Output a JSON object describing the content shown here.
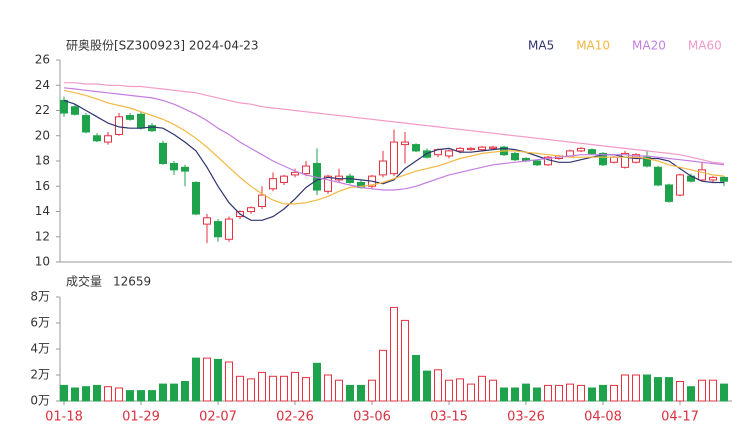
{
  "chart_data": {
    "type": "candlestick",
    "title": "研奥股份[SZ300923] 2024-04-23",
    "categories": [
      "01-18",
      null,
      null,
      null,
      null,
      null,
      null,
      "01-29",
      null,
      null,
      null,
      null,
      null,
      null,
      "02-07",
      null,
      null,
      null,
      null,
      null,
      null,
      "02-26",
      null,
      null,
      null,
      null,
      null,
      null,
      "03-06",
      null,
      null,
      null,
      null,
      null,
      null,
      "03-15",
      null,
      null,
      null,
      null,
      null,
      null,
      "03-26",
      null,
      null,
      null,
      null,
      null,
      null,
      "04-08",
      null,
      null,
      null,
      null,
      null,
      null,
      "04-17",
      null,
      null,
      null,
      null
    ],
    "up_color": "#e8303f",
    "down_color": "#1ea34c",
    "candles": [
      [
        22.8,
        23.1,
        21.5,
        21.8
      ],
      [
        22.3,
        22.5,
        21.6,
        21.7
      ],
      [
        21.6,
        21.8,
        20.2,
        20.3
      ],
      [
        20.0,
        20.2,
        19.5,
        19.6
      ],
      [
        19.5,
        20.3,
        19.3,
        20.0
      ],
      [
        20.1,
        21.8,
        20.0,
        21.5
      ],
      [
        21.6,
        21.8,
        21.2,
        21.3
      ],
      [
        21.7,
        21.9,
        20.5,
        20.6
      ],
      [
        20.8,
        21.0,
        20.3,
        20.4
      ],
      [
        19.4,
        19.6,
        17.7,
        17.8
      ],
      [
        17.8,
        18.0,
        16.9,
        17.3
      ],
      [
        17.5,
        17.7,
        16.0,
        17.2
      ],
      [
        16.3,
        16.4,
        13.7,
        13.8
      ],
      [
        13.0,
        13.8,
        11.5,
        13.5
      ],
      [
        13.2,
        13.4,
        11.6,
        12.0
      ],
      [
        11.8,
        13.6,
        11.6,
        13.4
      ],
      [
        13.6,
        14.1,
        13.4,
        14.0
      ],
      [
        14.0,
        14.4,
        13.8,
        14.3
      ],
      [
        14.4,
        16.0,
        14.2,
        15.3
      ],
      [
        15.8,
        17.1,
        15.6,
        16.6
      ],
      [
        16.3,
        16.9,
        16.1,
        16.8
      ],
      [
        16.9,
        17.4,
        16.7,
        17.1
      ],
      [
        17.0,
        18.0,
        16.8,
        17.6
      ],
      [
        17.8,
        19.0,
        15.3,
        15.7
      ],
      [
        15.6,
        16.9,
        15.4,
        16.8
      ],
      [
        16.5,
        17.4,
        16.3,
        16.8
      ],
      [
        16.8,
        17.0,
        16.2,
        16.3
      ],
      [
        16.3,
        16.5,
        15.8,
        15.9
      ],
      [
        16.0,
        16.9,
        15.8,
        16.8
      ],
      [
        16.9,
        18.8,
        16.7,
        18.0
      ],
      [
        17.0,
        20.5,
        16.8,
        19.5
      ],
      [
        19.3,
        20.3,
        17.8,
        19.5
      ],
      [
        19.3,
        19.4,
        18.7,
        18.8
      ],
      [
        18.8,
        19.0,
        18.2,
        18.3
      ],
      [
        18.5,
        19.0,
        18.3,
        18.9
      ],
      [
        18.4,
        18.9,
        18.2,
        18.8
      ],
      [
        18.8,
        19.1,
        18.6,
        19.0
      ],
      [
        18.9,
        19.1,
        18.8,
        19.0
      ],
      [
        18.9,
        19.2,
        18.8,
        19.1
      ],
      [
        19.0,
        19.2,
        18.9,
        19.1
      ],
      [
        19.1,
        19.2,
        18.4,
        18.5
      ],
      [
        18.6,
        18.7,
        18.0,
        18.1
      ],
      [
        18.2,
        18.3,
        17.9,
        18.0
      ],
      [
        18.0,
        18.1,
        17.6,
        17.7
      ],
      [
        17.7,
        18.4,
        17.6,
        18.3
      ],
      [
        18.2,
        18.5,
        18.1,
        18.4
      ],
      [
        18.4,
        18.9,
        18.3,
        18.8
      ],
      [
        18.8,
        19.1,
        18.7,
        19.0
      ],
      [
        18.9,
        19.0,
        18.5,
        18.6
      ],
      [
        18.6,
        18.7,
        17.6,
        17.7
      ],
      [
        17.9,
        18.4,
        17.8,
        18.3
      ],
      [
        17.5,
        18.8,
        17.4,
        18.6
      ],
      [
        17.9,
        18.6,
        17.8,
        18.5
      ],
      [
        18.3,
        18.8,
        17.5,
        17.6
      ],
      [
        17.5,
        17.6,
        16.0,
        16.1
      ],
      [
        16.1,
        16.2,
        14.7,
        14.8
      ],
      [
        15.3,
        17.0,
        15.2,
        16.9
      ],
      [
        16.8,
        17.0,
        16.3,
        16.4
      ],
      [
        16.5,
        17.9,
        16.4,
        17.3
      ],
      [
        16.5,
        16.8,
        16.3,
        16.7
      ],
      [
        16.7,
        16.8,
        16.0,
        16.4
      ]
    ],
    "series": [
      {
        "name": "MA5",
        "color": "#2e3470",
        "values": [
          22.8,
          22.5,
          22.0,
          21.5,
          21.0,
          20.7,
          20.6,
          20.6,
          20.7,
          20.6,
          20.1,
          19.5,
          18.8,
          17.5,
          16.0,
          14.7,
          13.8,
          13.3,
          13.3,
          13.6,
          14.2,
          15.0,
          15.9,
          16.5,
          16.7,
          16.6,
          16.6,
          16.5,
          16.4,
          16.2,
          16.5,
          17.4,
          18.0,
          18.6,
          18.9,
          19.0,
          18.7,
          18.7,
          18.8,
          18.9,
          19.0,
          18.9,
          18.7,
          18.4,
          18.1,
          17.9,
          17.9,
          18.1,
          18.3,
          18.5,
          18.5,
          18.3,
          18.2,
          18.2,
          18.2,
          18.0,
          17.4,
          16.8,
          16.4,
          16.3,
          16.3
        ]
      },
      {
        "name": "MA10",
        "color": "#f4b842",
        "values": [
          23.6,
          23.4,
          23.2,
          22.9,
          22.6,
          22.4,
          22.2,
          21.9,
          21.6,
          21.3,
          20.9,
          20.4,
          19.8,
          19.1,
          18.3,
          17.5,
          16.7,
          16.0,
          15.4,
          14.9,
          14.6,
          14.6,
          14.7,
          14.9,
          15.2,
          15.6,
          15.9,
          16.0,
          16.1,
          16.3,
          16.6,
          16.9,
          17.2,
          17.4,
          17.6,
          17.9,
          18.2,
          18.4,
          18.6,
          18.7,
          18.8,
          18.8,
          18.7,
          18.6,
          18.5,
          18.4,
          18.3,
          18.3,
          18.3,
          18.3,
          18.3,
          18.3,
          18.3,
          18.2,
          18.0,
          17.7,
          17.5,
          17.3,
          17.1,
          16.9,
          16.8
        ]
      },
      {
        "name": "MA20",
        "color": "#c47ee0",
        "values": [
          23.8,
          23.7,
          23.6,
          23.5,
          23.4,
          23.3,
          23.2,
          23.1,
          23.0,
          22.8,
          22.5,
          22.1,
          21.7,
          21.2,
          20.6,
          20.1,
          19.5,
          19.0,
          18.5,
          18.0,
          17.6,
          17.2,
          16.9,
          16.7,
          16.5,
          16.3,
          16.1,
          15.9,
          15.8,
          15.7,
          15.7,
          15.8,
          16.0,
          16.3,
          16.6,
          16.9,
          17.1,
          17.3,
          17.5,
          17.7,
          17.8,
          17.9,
          18.0,
          18.1,
          18.2,
          18.3,
          18.4,
          18.5,
          18.5,
          18.5,
          18.5,
          18.5,
          18.4,
          18.4,
          18.3,
          18.2,
          18.1,
          18.0,
          17.9,
          17.8,
          17.7
        ]
      },
      {
        "name": "MA60",
        "color": "#f29ac8",
        "values": [
          24.2,
          24.2,
          24.1,
          24.1,
          24.0,
          24.0,
          23.9,
          23.9,
          23.8,
          23.7,
          23.6,
          23.5,
          23.4,
          23.2,
          23.0,
          22.8,
          22.6,
          22.5,
          22.3,
          22.2,
          22.1,
          22.0,
          21.9,
          21.8,
          21.7,
          21.6,
          21.5,
          21.4,
          21.3,
          21.2,
          21.1,
          21.0,
          20.9,
          20.8,
          20.7,
          20.6,
          20.5,
          20.4,
          20.3,
          20.2,
          20.1,
          20.0,
          19.9,
          19.8,
          19.7,
          19.6,
          19.5,
          19.4,
          19.3,
          19.2,
          19.1,
          19.0,
          18.9,
          18.8,
          18.7,
          18.6,
          18.5,
          18.3,
          18.1,
          17.9,
          17.8
        ]
      }
    ],
    "ylim": [
      10,
      26
    ],
    "yticks": [
      10,
      12,
      14,
      16,
      18,
      20,
      22,
      24,
      26
    ],
    "volume_title": "成交量",
    "volume_latest": 12659,
    "volume": [
      1.2,
      1.0,
      1.1,
      1.2,
      1.1,
      1.0,
      0.8,
      0.8,
      0.8,
      1.3,
      1.3,
      1.5,
      3.3,
      3.3,
      3.2,
      3.0,
      1.9,
      1.7,
      2.2,
      1.9,
      1.9,
      2.2,
      1.8,
      2.9,
      2.0,
      1.6,
      1.2,
      1.2,
      1.6,
      3.9,
      7.2,
      6.2,
      3.5,
      2.3,
      2.4,
      1.6,
      1.7,
      1.3,
      1.9,
      1.6,
      1.0,
      1.0,
      1.3,
      1.0,
      1.2,
      1.2,
      1.3,
      1.2,
      1.0,
      1.2,
      1.2,
      2.0,
      2.0,
      2.0,
      1.8,
      1.8,
      1.5,
      1.1,
      1.6,
      1.6,
      1.3
    ],
    "vlim": [
      0,
      8
    ],
    "vticks": [
      {
        "value": 0,
        "label": "0万"
      },
      {
        "value": 2,
        "label": "2万"
      },
      {
        "value": 4,
        "label": "4万"
      },
      {
        "value": 6,
        "label": "6万"
      },
      {
        "value": 8,
        "label": "8万"
      }
    ]
  }
}
